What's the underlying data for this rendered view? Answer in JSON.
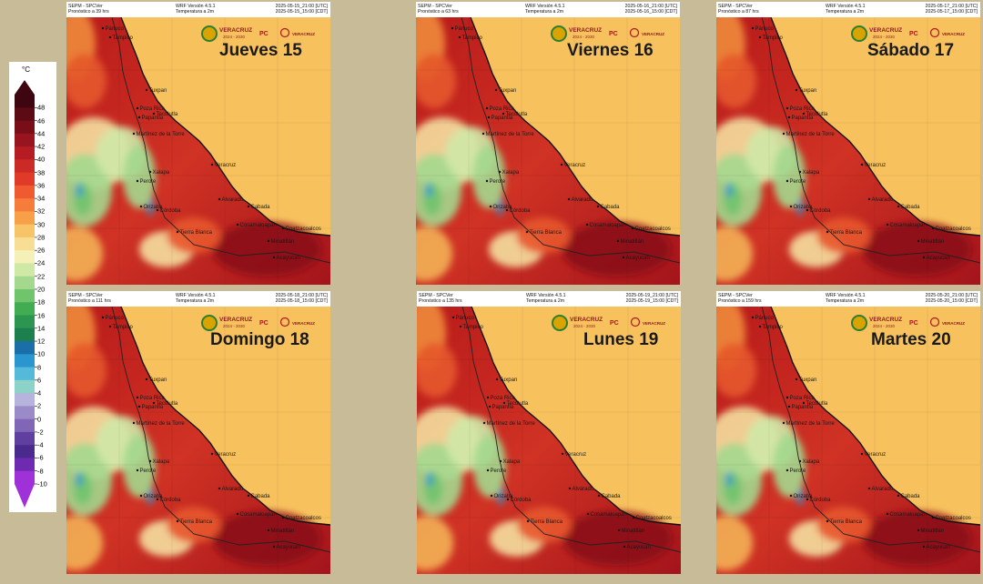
{
  "legend": {
    "unit": "°C",
    "ticks": [
      "48",
      "46",
      "44",
      "42",
      "40",
      "38",
      "36",
      "34",
      "32",
      "30",
      "28",
      "26",
      "24",
      "22",
      "20",
      "18",
      "16",
      "14",
      "12",
      "10",
      "8",
      "6",
      "4",
      "2",
      "0",
      "-2",
      "-4",
      "-6",
      "-8",
      "-10"
    ],
    "colors": [
      "#3d0610",
      "#5c0a14",
      "#7a0e18",
      "#981520",
      "#b51c24",
      "#cc2a26",
      "#e03a28",
      "#ef5a30",
      "#f57c3a",
      "#f7a048",
      "#f7c468",
      "#f8de95",
      "#f5efb8",
      "#cfe8a6",
      "#a4d88e",
      "#6fc46c",
      "#42ac52",
      "#2c9550",
      "#1d7f4e",
      "#1a6fa8",
      "#2a96cf",
      "#55bad9",
      "#8cd2c6",
      "#b6b4dc",
      "#9b8ac8",
      "#7f66b6",
      "#5f40a0",
      "#4b2a8e",
      "#6e2ab0",
      "#a030d8"
    ]
  },
  "header": {
    "left_line1": "SEPM - SPCVer",
    "center_line1": "WRF Versión 4.5.1",
    "center_line2": "Temperatura a 2m"
  },
  "panels": [
    {
      "day": "Jueves 15",
      "forecast": "Pronóstico a 39 hrs",
      "utc": "2025-05-15_21:00 [UTC]",
      "cdt": "2025-05-15_15:00 [CDT]"
    },
    {
      "day": "Viernes 16",
      "forecast": "Pronóstico a 63 hrs",
      "utc": "2025-05-16_21:00 [UTC]",
      "cdt": "2025-05-16_15:00 [CDT]"
    },
    {
      "day": "Sábado 17",
      "forecast": "Pronóstico a 87 hrs",
      "utc": "2025-05-17_21:00 [UTC]",
      "cdt": "2025-05-17_15:00 [CDT]"
    },
    {
      "day": "Domingo 18",
      "forecast": "Pronóstico a 111 hrs",
      "utc": "2025-05-18_21:00 [UTC]",
      "cdt": "2025-05-18_15:00 [CDT]"
    },
    {
      "day": "Lunes 19",
      "forecast": "Pronóstico a 135 hrs",
      "utc": "2025-05-19_21:00 [UTC]",
      "cdt": "2025-05-19_15:00 [CDT]"
    },
    {
      "day": "Martes 20",
      "forecast": "Pronóstico a 159 hrs",
      "utc": "2025-05-20_21:00 [UTC]",
      "cdt": "2025-05-20_15:00 [CDT]"
    }
  ],
  "places": [
    "Pánuco",
    "Tampico",
    "Tuxpan",
    "Poza Rica",
    "Papantla",
    "Tecolutla",
    "Martínez de la Torre",
    "Xalapa",
    "Perote",
    "Veracruz",
    "Orizaba",
    "Córdoba",
    "Alvarado",
    "Tierra Blanca",
    "Cosamaloapan",
    "Coatzacoalcos",
    "Minatitlán",
    "Cabada",
    "Acayucan"
  ],
  "logos": {
    "brand": "VERACRUZ",
    "years": "2024 - 2030",
    "pc": "PC"
  },
  "colors": {
    "background": "#c8bb98",
    "land_hot": "#c4221f",
    "land_warm": "#e8562b",
    "sea": "#f7c25e",
    "cool": "#9fd38a"
  }
}
